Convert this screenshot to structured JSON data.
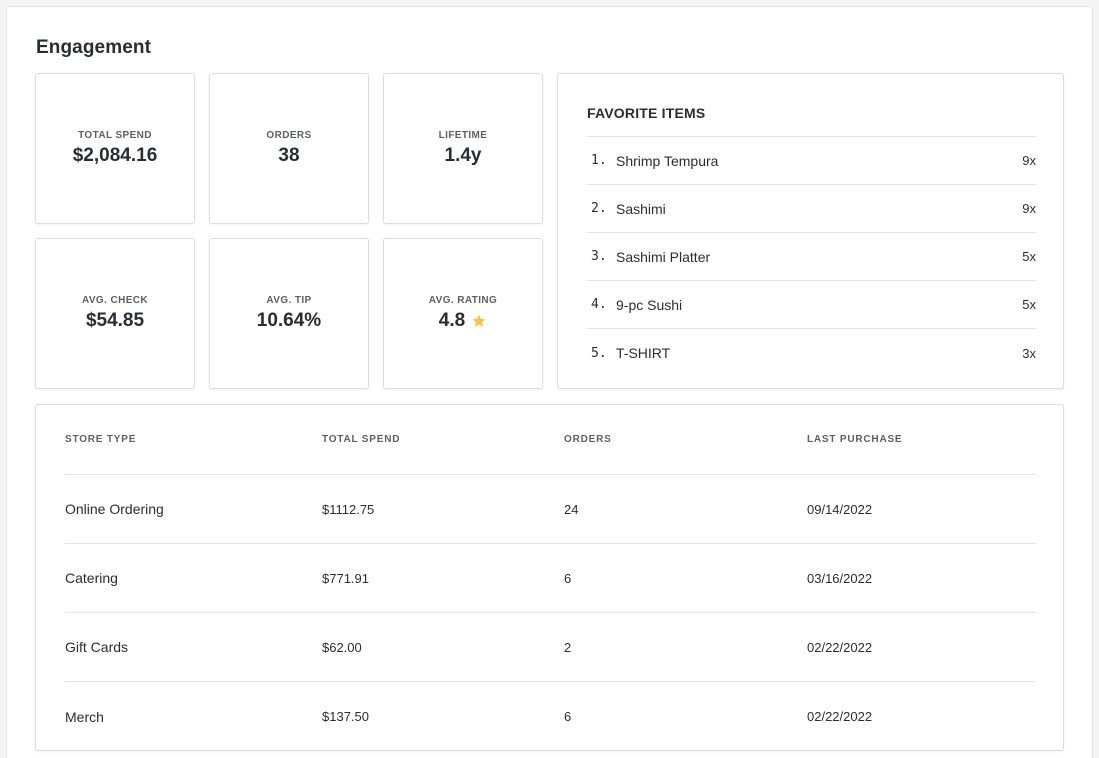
{
  "engagement": {
    "title": "Engagement",
    "stats": [
      {
        "label": "TOTAL SPEND",
        "value": "$2,084.16"
      },
      {
        "label": "ORDERS",
        "value": "38"
      },
      {
        "label": "LIFETIME",
        "value": "1.4y"
      },
      {
        "label": "AVG. CHECK",
        "value": "$54.85"
      },
      {
        "label": "AVG. TIP",
        "value": "10.64%"
      },
      {
        "label": "AVG. RATING",
        "value": "4.8",
        "icon": "star-icon"
      }
    ],
    "favorite_items": {
      "title": "FAVORITE ITEMS",
      "items": [
        {
          "rank": "1.",
          "name": "Shrimp Tempura",
          "count": "9x"
        },
        {
          "rank": "2.",
          "name": "Sashimi",
          "count": "9x"
        },
        {
          "rank": "3.",
          "name": "Sashimi Platter",
          "count": "5x"
        },
        {
          "rank": "4.",
          "name": "9-pc Sushi",
          "count": "5x"
        },
        {
          "rank": "5.",
          "name": "T-SHIRT",
          "count": "3x"
        }
      ]
    },
    "store_table": {
      "headers": [
        "STORE TYPE",
        "TOTAL SPEND",
        "ORDERS",
        "LAST PURCHASE"
      ],
      "rows": [
        {
          "store_type": "Online Ordering",
          "total_spend": "$1112.75",
          "orders": "24",
          "last_purchase": "09/14/2022"
        },
        {
          "store_type": "Catering",
          "total_spend": "$771.91",
          "orders": "6",
          "last_purchase": "03/16/2022"
        },
        {
          "store_type": "Gift Cards",
          "total_spend": "$62.00",
          "orders": "2",
          "last_purchase": "02/22/2022"
        },
        {
          "store_type": "Merch",
          "total_spend": "$137.50",
          "orders": "6",
          "last_purchase": "02/22/2022"
        }
      ]
    }
  },
  "colors": {
    "star": "#f6c244",
    "border": "#dcdce0",
    "text": "#2b2d34",
    "muted": "#5d5f66"
  }
}
